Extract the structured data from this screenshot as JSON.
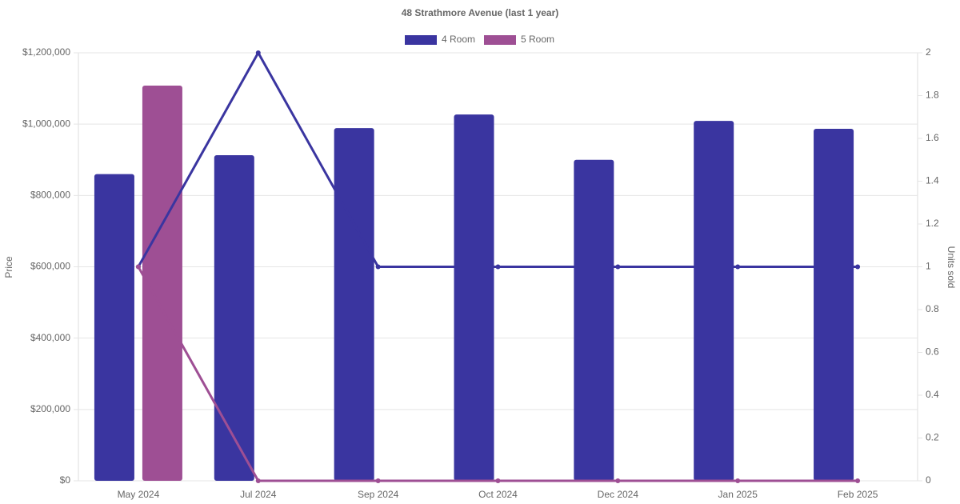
{
  "chart_data": {
    "type": "bar-line",
    "title": "48 Strathmore Avenue (last 1 year)",
    "y_label": "Price",
    "y2_label": "Units sold",
    "categories": [
      "May 2024",
      "Jul 2024",
      "Sep 2024",
      "Oct 2024",
      "Dec 2024",
      "Jan 2025",
      "Feb 2025"
    ],
    "series": [
      {
        "name": "4 Room",
        "color": "#3a35a0",
        "values": [
          860000,
          913000,
          989000,
          1027000,
          900000,
          1009000,
          987000
        ],
        "units": [
          1,
          2,
          1,
          1,
          1,
          1,
          1
        ]
      },
      {
        "name": "5 Room",
        "color": "#9e4f94",
        "values": [
          1108000,
          null,
          null,
          null,
          null,
          null,
          null
        ],
        "units": [
          1,
          0,
          0,
          0,
          0,
          0,
          0
        ]
      }
    ],
    "ylim": [
      0,
      1200000
    ],
    "yticks": [
      {
        "value": 0,
        "label": "$0"
      },
      {
        "value": 200000,
        "label": "$200,000"
      },
      {
        "value": 400000,
        "label": "$400,000"
      },
      {
        "value": 600000,
        "label": "$600,000"
      },
      {
        "value": 800000,
        "label": "$800,000"
      },
      {
        "value": 1000000,
        "label": "$1,000,000"
      },
      {
        "value": 1200000,
        "label": "$1,200,000"
      }
    ],
    "y2lim": [
      0,
      2
    ],
    "y2ticks": [
      0,
      0.2,
      0.4,
      0.6,
      0.8,
      1,
      1.2,
      1.4,
      1.6,
      1.8,
      2
    ],
    "grid": true
  }
}
